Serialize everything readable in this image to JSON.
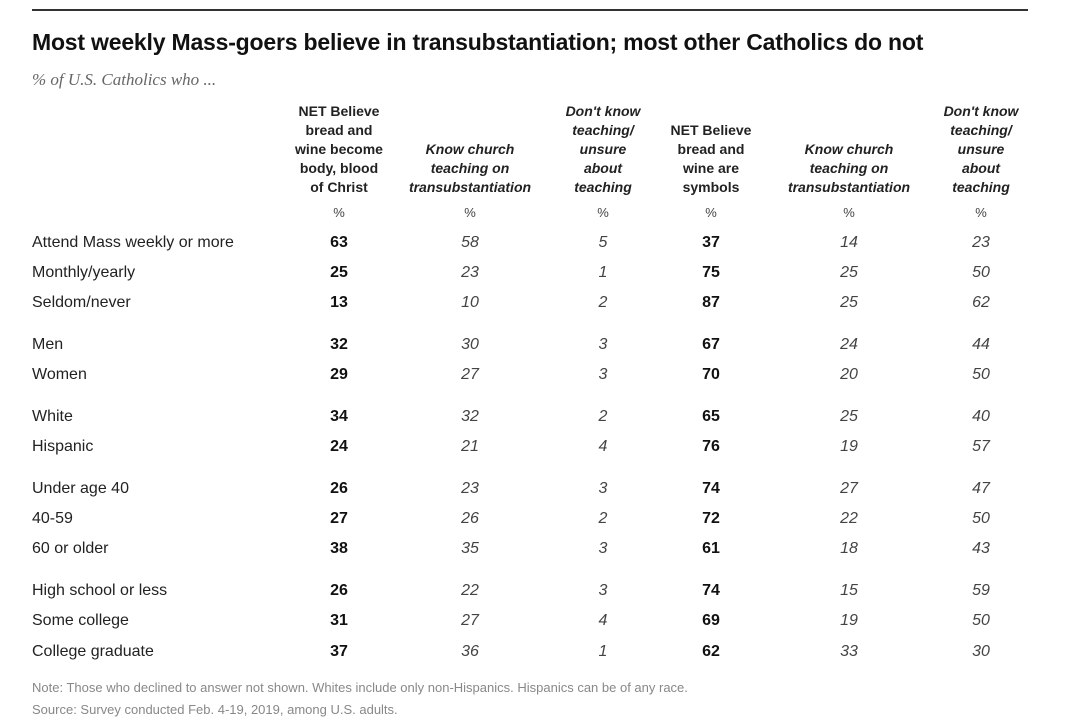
{
  "chart_data": {
    "type": "table",
    "title": "Most weekly Mass-goers believe in transubstantiation; most other Catholics do not",
    "subtitle": "% of U.S. Catholics who ...",
    "unit": "%",
    "columns": [
      {
        "lines": [
          "NET Believe",
          "bread and",
          "wine become",
          "body, blood",
          "of Christ"
        ],
        "style": "bold"
      },
      {
        "lines": [
          "Know church",
          "teaching on",
          "transubstantiation"
        ],
        "style": "italic"
      },
      {
        "lines": [
          "Don't know",
          "teaching/",
          "unsure",
          "about",
          "teaching"
        ],
        "style": "italic"
      },
      {
        "lines": [
          "NET Believe",
          "bread and",
          "wine are",
          "symbols"
        ],
        "style": "bold"
      },
      {
        "lines": [
          "Know church",
          "teaching on",
          "transubstantiation"
        ],
        "style": "italic"
      },
      {
        "lines": [
          "Don't know",
          "teaching/",
          "unsure",
          "about",
          "teaching"
        ],
        "style": "italic"
      }
    ],
    "rows": [
      {
        "label": "Attend Mass weekly or more",
        "values": [
          63,
          58,
          5,
          37,
          14,
          23
        ]
      },
      {
        "label": "Monthly/yearly",
        "values": [
          25,
          23,
          1,
          75,
          25,
          50
        ]
      },
      {
        "label": "Seldom/never",
        "values": [
          13,
          10,
          2,
          87,
          25,
          62
        ]
      },
      {
        "label": "Men",
        "values": [
          32,
          30,
          3,
          67,
          24,
          44
        ]
      },
      {
        "label": "Women",
        "values": [
          29,
          27,
          3,
          70,
          20,
          50
        ]
      },
      {
        "label": "White",
        "values": [
          34,
          32,
          2,
          65,
          25,
          40
        ]
      },
      {
        "label": "Hispanic",
        "values": [
          24,
          21,
          4,
          76,
          19,
          57
        ]
      },
      {
        "label": "Under age 40",
        "values": [
          26,
          23,
          3,
          74,
          27,
          47
        ]
      },
      {
        "label": "40-59",
        "values": [
          27,
          26,
          2,
          72,
          22,
          50
        ]
      },
      {
        "label": "60 or older",
        "values": [
          38,
          35,
          3,
          61,
          18,
          43
        ]
      },
      {
        "label": "High school or less",
        "values": [
          26,
          22,
          3,
          74,
          15,
          59
        ]
      },
      {
        "label": "Some college",
        "values": [
          31,
          27,
          4,
          69,
          19,
          50
        ]
      },
      {
        "label": "College graduate",
        "values": [
          37,
          36,
          1,
          62,
          33,
          30
        ]
      }
    ]
  },
  "note": "Note: Those who declined to answer not shown. Whites include only non-Hispanics. Hispanics can be of any race.",
  "source": "Source: Survey conducted Feb. 4-19, 2019, among U.S. adults."
}
